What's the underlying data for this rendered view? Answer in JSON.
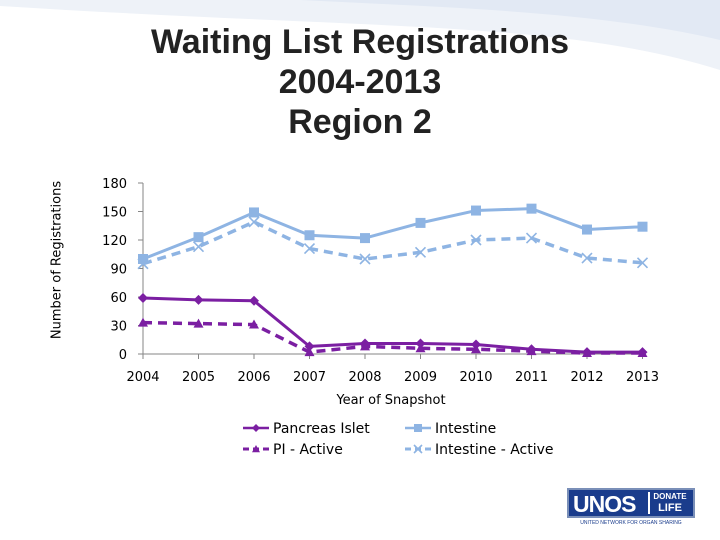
{
  "title_lines": [
    "Waiting List Registrations",
    "2004-2013",
    "Region 2"
  ],
  "colors": {
    "pancreas": "#7B1FA2",
    "intestine": "#8EB4E3",
    "axis": "#868686",
    "text": "#000000"
  },
  "logo": {
    "name": "UNOS",
    "badge_line1": "DONATE",
    "badge_line2": "LIFE",
    "tagline": "UNITED NETWORK FOR ORGAN SHARING"
  },
  "chart_data": {
    "type": "line",
    "title": "Waiting List Registrations 2004-2013 Region 2",
    "xlabel": "Year of Snapshot",
    "ylabel": "Number of Registrations",
    "categories": [
      "2004",
      "2005",
      "2006",
      "2007",
      "2008",
      "2009",
      "2010",
      "2011",
      "2012",
      "2013"
    ],
    "ylim": [
      0,
      180
    ],
    "yticks": [
      0,
      30,
      60,
      90,
      120,
      150,
      180
    ],
    "grid": false,
    "legend_position": "bottom",
    "series": [
      {
        "name": "Pancreas Islet",
        "color": "#7B1FA2",
        "dash": false,
        "marker": "diamond",
        "values": [
          59,
          57,
          56,
          8,
          11,
          11,
          10,
          5,
          2,
          2
        ]
      },
      {
        "name": "Intestine",
        "color": "#8EB4E3",
        "dash": false,
        "marker": "square",
        "values": [
          100,
          123,
          149,
          125,
          122,
          138,
          151,
          153,
          131,
          134
        ]
      },
      {
        "name": "PI - Active",
        "color": "#7B1FA2",
        "dash": true,
        "marker": "triangle",
        "values": [
          33,
          32,
          31,
          2,
          8,
          6,
          5,
          3,
          1,
          1
        ]
      },
      {
        "name": "Intestine - Active",
        "color": "#8EB4E3",
        "dash": true,
        "marker": "x",
        "values": [
          95,
          113,
          139,
          111,
          100,
          107,
          120,
          122,
          101,
          96
        ]
      }
    ]
  }
}
